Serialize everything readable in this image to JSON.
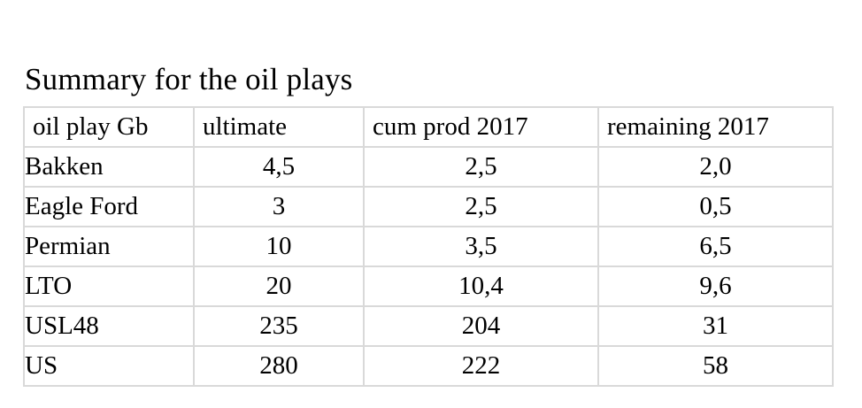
{
  "title": "Summary for the oil plays",
  "table": {
    "headers": [
      "oil play Gb",
      "ultimate",
      "cum prod 2017",
      "remaining 2017"
    ],
    "rows": [
      [
        "Bakken",
        "4,5",
        "2,5",
        "2,0"
      ],
      [
        "Eagle Ford",
        "3",
        "2,5",
        "0,5"
      ],
      [
        "Permian",
        "10",
        "3,5",
        "6,5"
      ],
      [
        "LTO",
        "20",
        "10,4",
        "9,6"
      ],
      [
        "USL48",
        "235",
        "204",
        "31"
      ],
      [
        "US",
        "280",
        "222",
        "58"
      ]
    ],
    "border_color": "#d9d9d9",
    "text_color": "#000000"
  }
}
